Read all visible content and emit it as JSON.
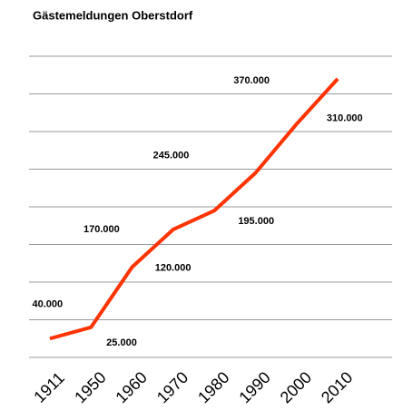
{
  "chart_data": {
    "type": "line",
    "title": "Gästemeldungen Oberstdorf",
    "categories": [
      "1911",
      "1950",
      "1960",
      "1970",
      "1980",
      "1990",
      "2000",
      "2010"
    ],
    "series": [
      {
        "name": "Gästemeldungen",
        "color": "#ff3300",
        "values": [
          25000,
          40000,
          120000,
          170000,
          195000,
          245000,
          310000,
          370000
        ],
        "value_labels": [
          "25.000",
          "40.000",
          "120.000",
          "170.000",
          "195.000",
          "245.000",
          "310.000",
          "370.000"
        ]
      }
    ],
    "ylim": [
      0,
      400000
    ],
    "yticks": [
      0,
      50000,
      100000,
      150000,
      200000,
      250000,
      300000,
      350000,
      400000
    ],
    "grid": true,
    "show_ytick_labels": false,
    "legend": false
  }
}
